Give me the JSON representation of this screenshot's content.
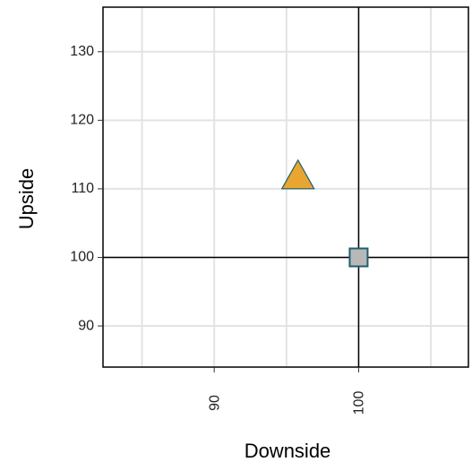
{
  "chart_data": {
    "type": "scatter",
    "title": "",
    "xlabel": "Downside",
    "ylabel": "Upside",
    "xlim": [
      82.3,
      107.6
    ],
    "ylim": [
      84,
      136.5
    ],
    "x_ticks": [
      90,
      100
    ],
    "x_tick_labels": [
      "90",
      "100"
    ],
    "x_minor_grid": [
      85,
      95,
      105
    ],
    "y_ticks": [
      90,
      100,
      110,
      120,
      130
    ],
    "y_tick_labels": [
      "90",
      "100",
      "110",
      "120",
      "130"
    ],
    "grid": true,
    "reference_lines": {
      "x": 100,
      "y": 100
    },
    "points": [
      {
        "x": 95.8,
        "y": 112.1,
        "shape": "triangle",
        "color": "#E8A630",
        "stroke": "#1F5F6B"
      },
      {
        "x": 100,
        "y": 100,
        "shape": "square",
        "color": "#B8B8B8",
        "stroke": "#1F5F6B"
      }
    ]
  }
}
